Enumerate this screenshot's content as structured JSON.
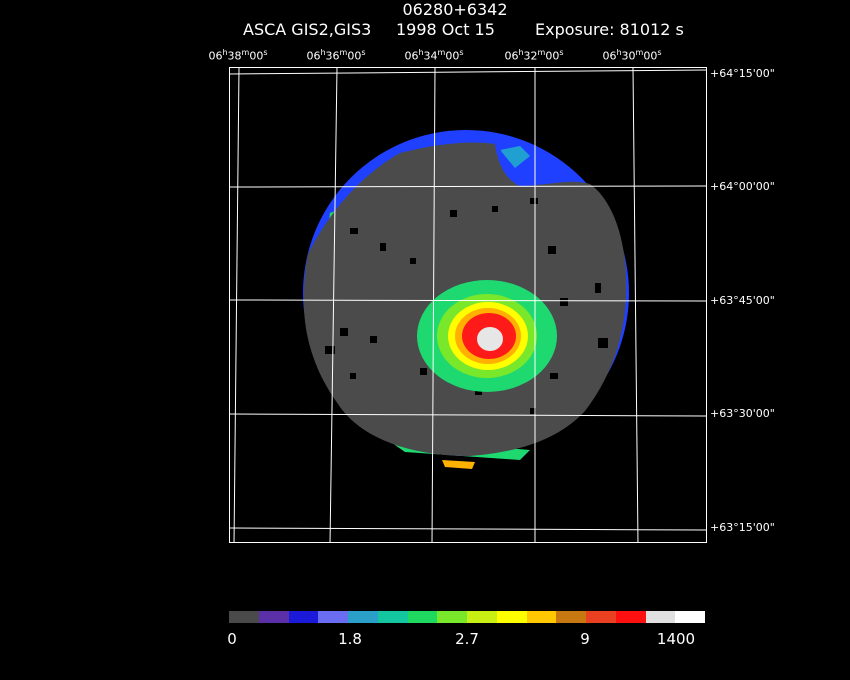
{
  "header": {
    "object": "06280+6342",
    "instrument": "ASCA GIS2,GIS3",
    "date": "1998 Oct 15",
    "exposure": "Exposure: 81012 s"
  },
  "ra_labels": [
    {
      "h": "06",
      "m": "38",
      "s": "00"
    },
    {
      "h": "06",
      "m": "36",
      "s": "00"
    },
    {
      "h": "06",
      "m": "34",
      "s": "00"
    },
    {
      "h": "06",
      "m": "32",
      "s": "00"
    },
    {
      "h": "06",
      "m": "30",
      "s": "00"
    }
  ],
  "dec_labels": [
    {
      "d": "+64",
      "m": "15",
      "s": "00"
    },
    {
      "d": "+64",
      "m": "00",
      "s": "00"
    },
    {
      "d": "+63",
      "m": "45",
      "s": "00"
    },
    {
      "d": "+63",
      "m": "30",
      "s": "00"
    },
    {
      "d": "+63",
      "m": "15",
      "s": "00"
    }
  ],
  "colorbar": {
    "colors": [
      "#4a4a4a",
      "#5a2fa8",
      "#1b1ad8",
      "#6a6cf2",
      "#2aa0c8",
      "#13c6a0",
      "#1ed860",
      "#7ae82a",
      "#c8f014",
      "#ffff00",
      "#ffc800",
      "#c87810",
      "#e84020",
      "#ff1010",
      "#e0e0e0",
      "#ffffff"
    ],
    "tick_labels": [
      "0",
      "1.8",
      "2.7",
      "9",
      "1400"
    ]
  },
  "image_colors": {
    "background": "#000000",
    "field": "#4b4b4b",
    "edge_blue": "#2040ff",
    "edge_green": "#20e060",
    "edge_cyan": "#20a0d0",
    "source_green": "#1ed870",
    "source_yellow": "#ffff00",
    "source_orange": "#ffb000",
    "source_red": "#ff1a1a",
    "source_white": "#e6e6e6",
    "grid": "#ffffff"
  }
}
